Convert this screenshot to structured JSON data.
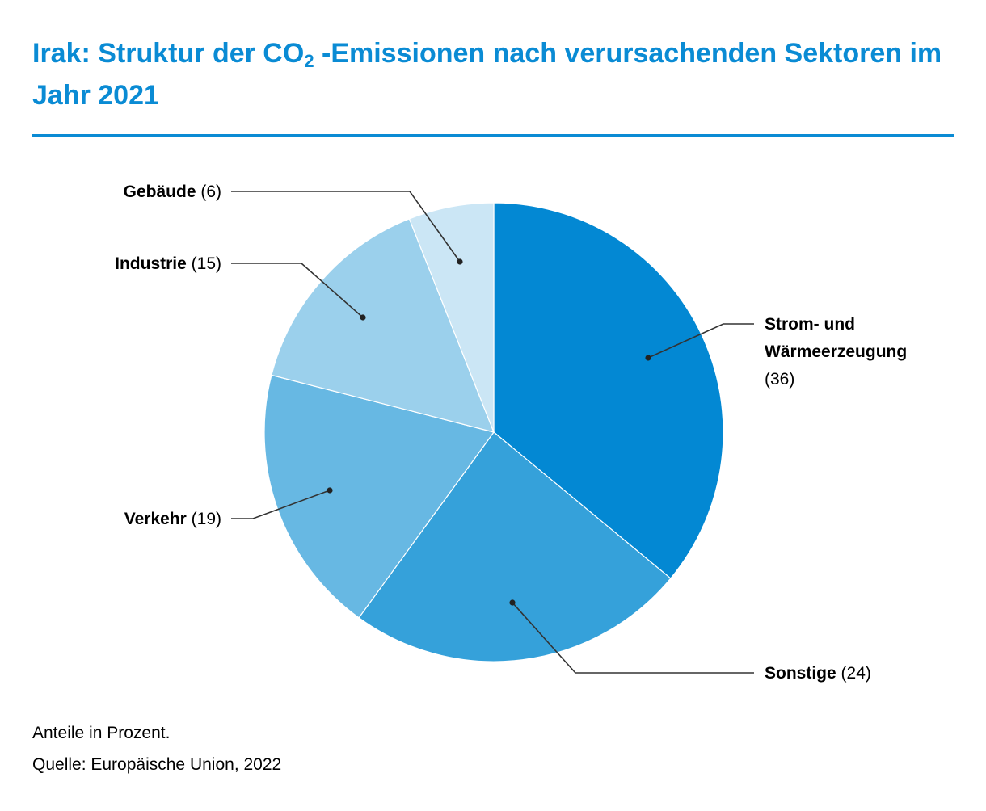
{
  "title_pre": "Irak: Struktur der CO",
  "title_sub": "2",
  "title_post": " -Emissionen nach verursachenden Sektoren im Jahr 2021",
  "notes": {
    "unit": "Anteile in Prozent.",
    "source": "Quelle: Europäische Union, 2022"
  },
  "colors": {
    "title": "#0a8bd4",
    "leader": "#333333"
  },
  "chart_data": {
    "type": "pie",
    "start": "12 o'clock, clockwise",
    "slices": [
      {
        "label": "Strom- und Wärmeerzeugung",
        "label_lines": [
          "Strom- und",
          "Wärmeerzeugung"
        ],
        "value": 36,
        "value_text": "(36)",
        "color": "#0388d3",
        "label_side": "right"
      },
      {
        "label": "Sonstige",
        "value": 24,
        "value_text": "(24)",
        "color": "#35a1da",
        "label_side": "right"
      },
      {
        "label": "Verkehr",
        "value": 19,
        "value_text": "(19)",
        "color": "#67b8e3",
        "label_side": "left"
      },
      {
        "label": "Industrie",
        "value": 15,
        "value_text": "(15)",
        "color": "#9bd0ec",
        "label_side": "left"
      },
      {
        "label": "Gebäude",
        "value": 6,
        "value_text": "(6)",
        "color": "#cbe6f5",
        "label_side": "left"
      }
    ]
  }
}
